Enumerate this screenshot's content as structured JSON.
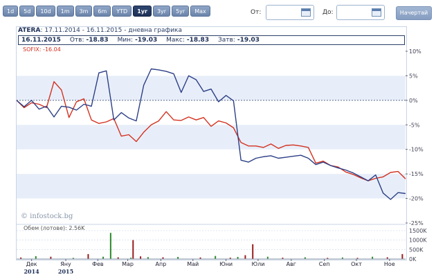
{
  "toolbar": {
    "periods": [
      "1d",
      "5d",
      "10d",
      "1m",
      "3m",
      "6m",
      "YTD",
      "1yr",
      "3yr",
      "5yr",
      "Max"
    ],
    "active_period": "1yr",
    "from_label": "От:",
    "to_label": "До:",
    "submit_label": "Начертай"
  },
  "chart": {
    "ticker": "ATERA",
    "subtitle": ": 17.11.2014 - 16.11.2015 - дневна графика",
    "info": {
      "date": "16.11.2015",
      "open_label": "Отв:",
      "open": "-18.83",
      "min_label": "Мин:",
      "min": "-19.03",
      "max_label": "Макс:",
      "max": "-18.83",
      "close_label": "Затв:",
      "close": "-19.03"
    },
    "sofix_label": "SOFIX: -16.04",
    "watermark": "© infostock.bg",
    "volume_label": "Обем (лотове): 2.56K"
  },
  "colors": {
    "atera": "#2b3f86",
    "sofix": "#d3311f",
    "band": "#e8eef9",
    "zero": "#5a6b88",
    "vol_green": "#2a8a2a",
    "vol_red": "#9a1b1b"
  },
  "chart_data": {
    "type": "line",
    "x_range": [
      "2014-11-17",
      "2015-11-16"
    ],
    "y_unit": "%",
    "ylim": [
      -25,
      10
    ],
    "y_ticks": [
      "10%",
      "5%",
      "0%",
      "-5%",
      "-10%",
      "-15%",
      "-20%",
      "-25%"
    ],
    "series": [
      {
        "name": "ATERA",
        "color": "#2b3f86",
        "x": [
          "2014-11-17",
          "2014-11-24",
          "2014-12-01",
          "2014-12-08",
          "2014-12-15",
          "2014-12-22",
          "2014-12-29",
          "2015-01-05",
          "2015-01-12",
          "2015-01-19",
          "2015-01-26",
          "2015-02-02",
          "2015-02-09",
          "2015-02-16",
          "2015-02-23",
          "2015-03-02",
          "2015-03-09",
          "2015-03-16",
          "2015-03-23",
          "2015-03-30",
          "2015-04-06",
          "2015-04-13",
          "2015-04-20",
          "2015-04-27",
          "2015-05-04",
          "2015-05-11",
          "2015-05-18",
          "2015-05-25",
          "2015-06-01",
          "2015-06-08",
          "2015-06-15",
          "2015-06-22",
          "2015-06-29",
          "2015-07-06",
          "2015-07-13",
          "2015-07-20",
          "2015-07-27",
          "2015-08-03",
          "2015-08-10",
          "2015-08-17",
          "2015-08-24",
          "2015-08-31",
          "2015-09-07",
          "2015-09-14",
          "2015-09-21",
          "2015-09-28",
          "2015-10-05",
          "2015-10-12",
          "2015-10-19",
          "2015-10-26",
          "2015-11-02",
          "2015-11-09",
          "2015-11-16"
        ],
        "values": [
          0.0,
          -1.3,
          0.0,
          -1.8,
          -1.2,
          -3.4,
          -1.2,
          -1.4,
          -2.0,
          -0.8,
          -1.2,
          5.6,
          6.0,
          -4.0,
          -2.5,
          -3.6,
          -4.2,
          3.1,
          6.4,
          6.2,
          5.9,
          5.4,
          1.6,
          5.0,
          4.2,
          1.8,
          2.3,
          -0.3,
          1.0,
          -0.1,
          -12.2,
          -12.6,
          -11.8,
          -11.5,
          -11.3,
          -11.8,
          -11.6,
          -11.4,
          -11.2,
          -11.8,
          -13.1,
          -12.6,
          -13.3,
          -13.8,
          -14.2,
          -14.8,
          -15.6,
          -16.4,
          -15.2,
          -18.9,
          -20.2,
          -18.8,
          -19.0
        ]
      },
      {
        "name": "SOFIX",
        "color": "#d3311f",
        "x": [
          "2014-11-17",
          "2014-11-24",
          "2014-12-01",
          "2014-12-08",
          "2014-12-15",
          "2014-12-22",
          "2014-12-29",
          "2015-01-05",
          "2015-01-12",
          "2015-01-19",
          "2015-01-26",
          "2015-02-02",
          "2015-02-09",
          "2015-02-16",
          "2015-02-23",
          "2015-03-02",
          "2015-03-09",
          "2015-03-16",
          "2015-03-23",
          "2015-03-30",
          "2015-04-06",
          "2015-04-13",
          "2015-04-20",
          "2015-04-27",
          "2015-05-04",
          "2015-05-11",
          "2015-05-18",
          "2015-05-25",
          "2015-06-01",
          "2015-06-08",
          "2015-06-15",
          "2015-06-22",
          "2015-06-29",
          "2015-07-06",
          "2015-07-13",
          "2015-07-20",
          "2015-07-27",
          "2015-08-03",
          "2015-08-10",
          "2015-08-17",
          "2015-08-24",
          "2015-08-31",
          "2015-09-07",
          "2015-09-14",
          "2015-09-21",
          "2015-09-28",
          "2015-10-05",
          "2015-10-12",
          "2015-10-19",
          "2015-10-26",
          "2015-11-02",
          "2015-11-09",
          "2015-11-16"
        ],
        "values": [
          0.0,
          -1.5,
          -0.5,
          -0.8,
          -1.5,
          3.8,
          2.1,
          -3.5,
          -0.3,
          0.3,
          -4.0,
          -4.7,
          -4.4,
          -3.7,
          -7.3,
          -7.0,
          -8.4,
          -6.5,
          -5.0,
          -4.2,
          -2.3,
          -4.0,
          -4.1,
          -3.4,
          -4.0,
          -3.5,
          -5.3,
          -4.2,
          -4.6,
          -5.6,
          -8.6,
          -9.3,
          -9.3,
          -9.6,
          -8.9,
          -9.8,
          -9.2,
          -9.1,
          -9.3,
          -9.6,
          -12.8,
          -12.4,
          -13.3,
          -13.6,
          -14.6,
          -15.1,
          -15.8,
          -16.4,
          -15.9,
          -15.6,
          -14.7,
          -14.5,
          -16.0
        ]
      }
    ],
    "volume": {
      "ylim": [
        0,
        1500
      ],
      "y_ticks": [
        "1500K",
        "1000K",
        "500K",
        "0K"
      ],
      "x": [
        "2014-11-21",
        "2014-12-05",
        "2014-12-19",
        "2015-01-09",
        "2015-01-23",
        "2015-02-06",
        "2015-02-13",
        "2015-02-20",
        "2015-03-04",
        "2015-03-06",
        "2015-03-13",
        "2015-03-20",
        "2015-04-03",
        "2015-04-17",
        "2015-05-08",
        "2015-05-22",
        "2015-06-05",
        "2015-06-12",
        "2015-06-19",
        "2015-06-26",
        "2015-07-10",
        "2015-07-24",
        "2015-08-14",
        "2015-09-04",
        "2015-09-18",
        "2015-10-02",
        "2015-10-16",
        "2015-10-30",
        "2015-11-13"
      ],
      "values": [
        80,
        150,
        120,
        60,
        260,
        120,
        1380,
        90,
        70,
        1000,
        140,
        100,
        90,
        110,
        80,
        160,
        70,
        110,
        200,
        780,
        120,
        70,
        90,
        60,
        80,
        60,
        120,
        90,
        260
      ],
      "colors": [
        "#9a1b1b",
        "#2a8a2a",
        "#9a1b1b",
        "#2a8a2a",
        "#9a1b1b",
        "#2a8a2a",
        "#2a8a2a",
        "#9a1b1b",
        "#2a8a2a",
        "#9a1b1b",
        "#9a1b1b",
        "#2a8a2a",
        "#9a1b1b",
        "#2a8a2a",
        "#9a1b1b",
        "#2a8a2a",
        "#9a1b1b",
        "#2a8a2a",
        "#9a1b1b",
        "#9a1b1b",
        "#2a8a2a",
        "#9a1b1b",
        "#2a8a2a",
        "#9a1b1b",
        "#2a8a2a",
        "#9a1b1b",
        "#2a8a2a",
        "#9a1b1b",
        "#9a1b1b"
      ]
    },
    "x_ticks": [
      {
        "date": "2014-12-01",
        "label": "Дек",
        "year": "2014"
      },
      {
        "date": "2015-01-02",
        "label": "Яну",
        "year": "2015"
      },
      {
        "date": "2015-02-01",
        "label": "Фев"
      },
      {
        "date": "2015-03-01",
        "label": "Мар"
      },
      {
        "date": "2015-04-01",
        "label": "Апр"
      },
      {
        "date": "2015-05-01",
        "label": "Май"
      },
      {
        "date": "2015-06-01",
        "label": "Юни"
      },
      {
        "date": "2015-07-01",
        "label": "Юли"
      },
      {
        "date": "2015-08-01",
        "label": "Авг"
      },
      {
        "date": "2015-09-01",
        "label": "Сеп"
      },
      {
        "date": "2015-10-01",
        "label": "Окт"
      },
      {
        "date": "2015-11-01",
        "label": "Ное"
      }
    ],
    "grid": true,
    "legend": "top-left"
  }
}
